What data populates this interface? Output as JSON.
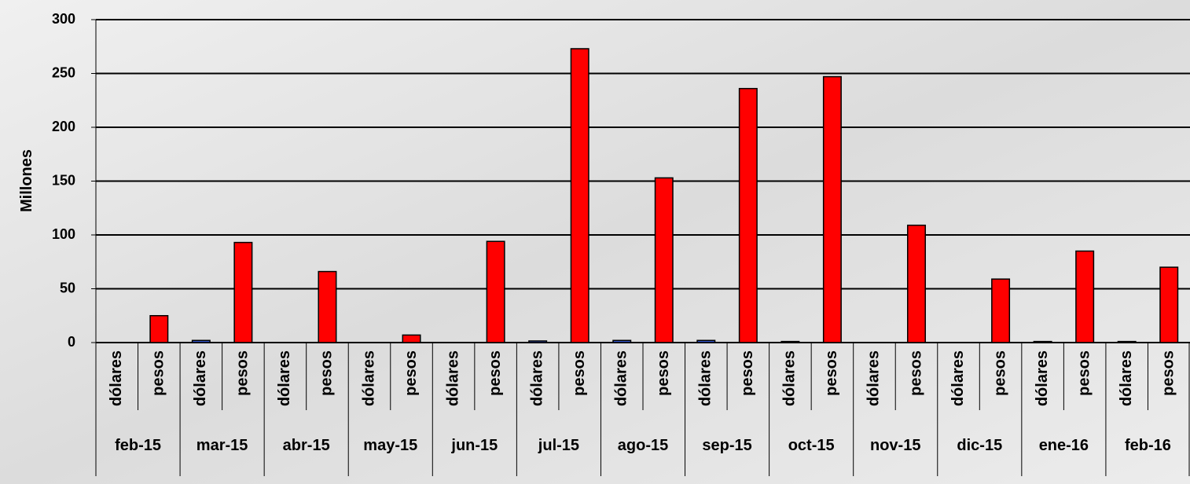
{
  "chart_data": {
    "type": "bar",
    "y_label": "Millones",
    "categories": [
      "feb-15",
      "mar-15",
      "abr-15",
      "may-15",
      "jun-15",
      "jul-15",
      "ago-15",
      "sep-15",
      "oct-15",
      "nov-15",
      "dic-15",
      "ene-16",
      "feb-16"
    ],
    "series": [
      {
        "name": "dólares",
        "color": "#3355cc",
        "values": [
          0,
          2,
          0,
          0,
          0,
          1.5,
          2,
          2,
          1,
          0,
          0,
          1,
          1
        ]
      },
      {
        "name": "pesos",
        "color": "#ff0000",
        "values": [
          25,
          93,
          66,
          7,
          94,
          273,
          153,
          236,
          247,
          109,
          59,
          85,
          70
        ]
      }
    ],
    "ylim": [
      0,
      300
    ],
    "yticks": [
      0,
      50,
      100,
      150,
      200,
      250,
      300
    ],
    "grid": true
  }
}
